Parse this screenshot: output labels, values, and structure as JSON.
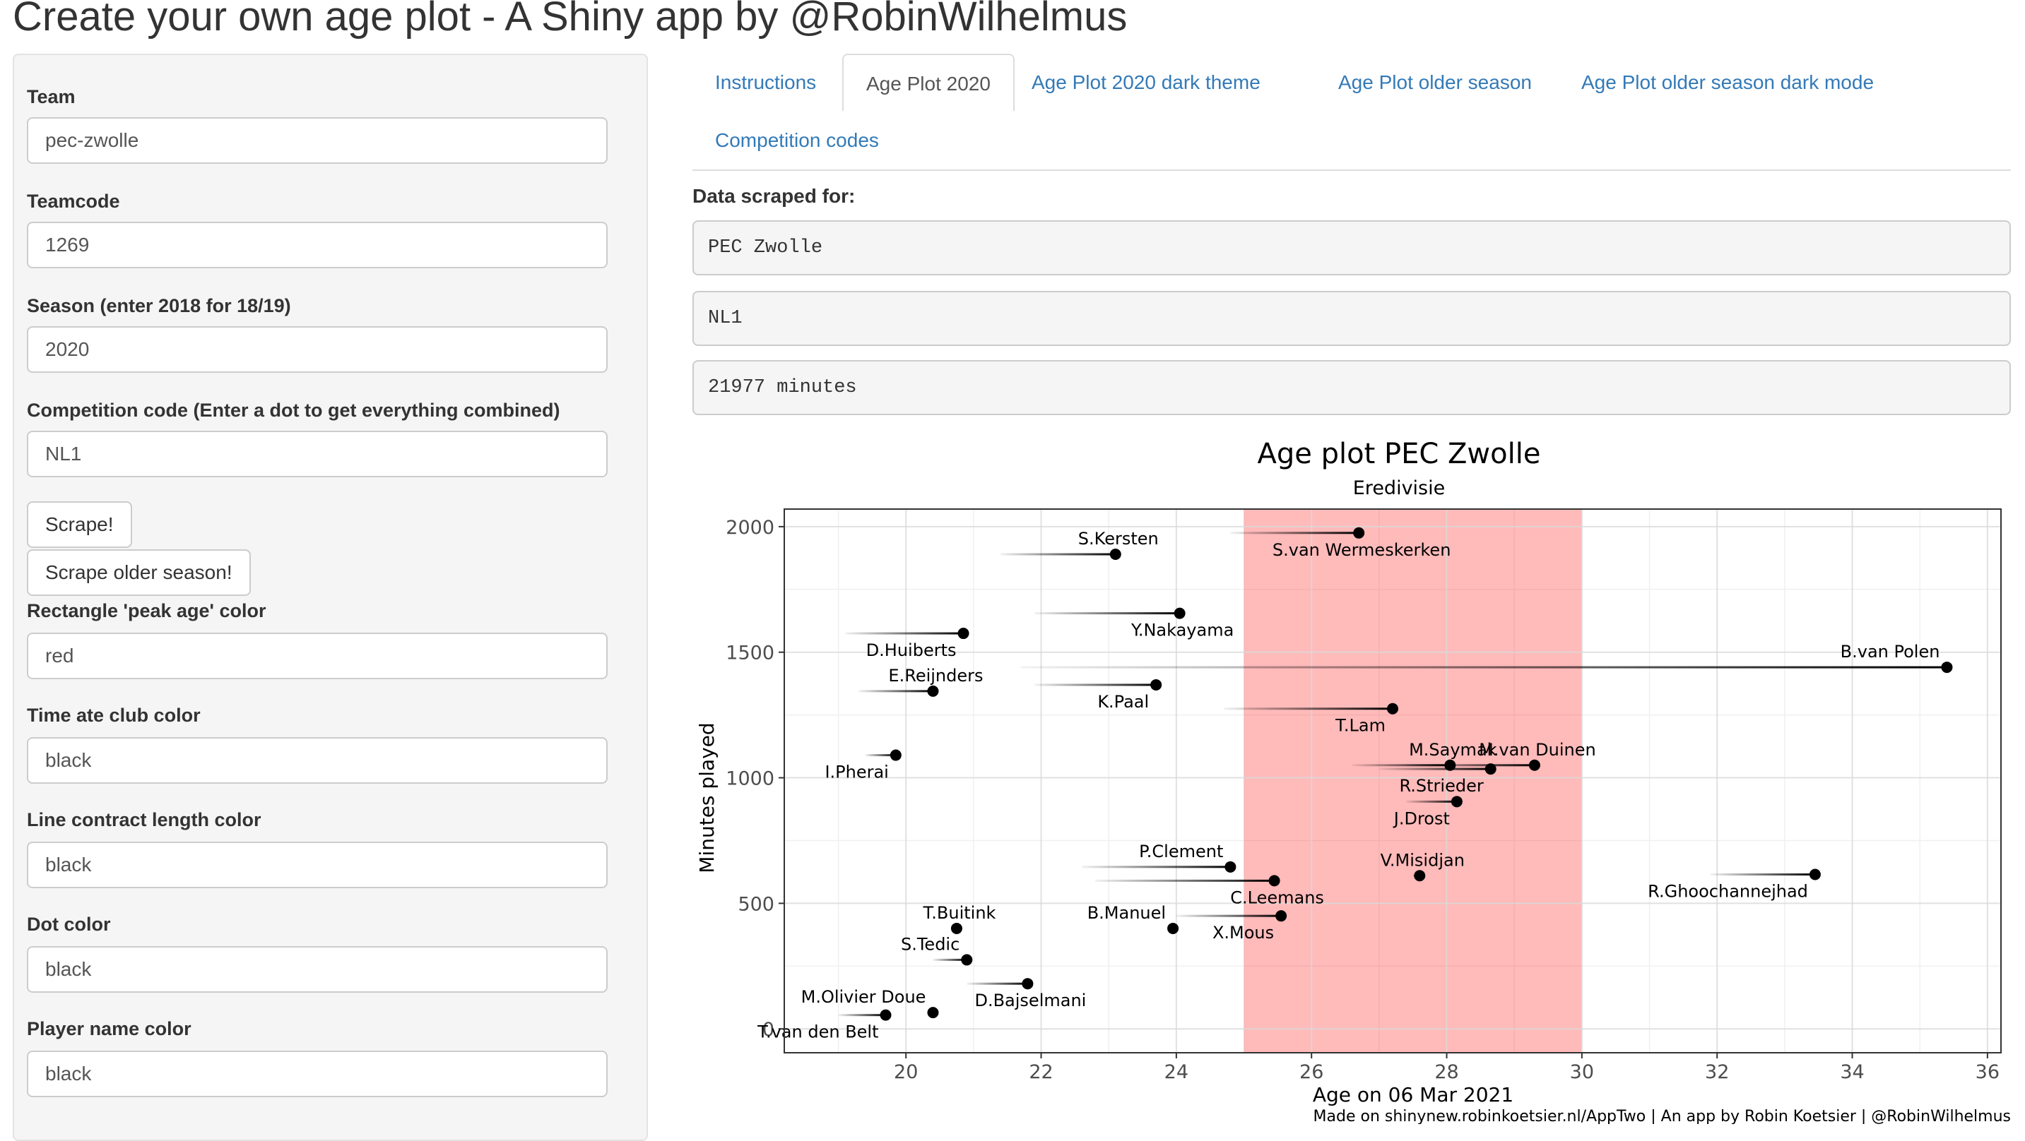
{
  "app": {
    "title": "Create your own age plot - A Shiny app by @RobinWilhelmus"
  },
  "sidebar": {
    "team": {
      "label": "Team",
      "value": "pec-zwolle"
    },
    "teamcode": {
      "label": "Teamcode",
      "value": "1269"
    },
    "season": {
      "label": "Season (enter 2018 for 18/19)",
      "value": "2020"
    },
    "competition": {
      "label": "Competition code (Enter a dot to get everything combined)",
      "value": "NL1"
    },
    "scrape_button": "Scrape!",
    "scrape_older_button": "Scrape older season!",
    "rect_color": {
      "label": "Rectangle 'peak age' color",
      "value": "red"
    },
    "time_club_color": {
      "label": "Time ate club color",
      "value": "black"
    },
    "line_contract_color": {
      "label": "Line contract length color",
      "value": "black"
    },
    "dot_color": {
      "label": "Dot color",
      "value": "black"
    },
    "player_name_color": {
      "label": "Player name color",
      "value": "black"
    }
  },
  "tabs": [
    {
      "label": "Instructions",
      "active": false
    },
    {
      "label": "Age Plot 2020",
      "active": true
    },
    {
      "label": "Age Plot 2020 dark theme",
      "active": false
    },
    {
      "label": "Age Plot older season",
      "active": false
    },
    {
      "label": "Age Plot older season dark mode",
      "active": false
    },
    {
      "label": "Competition codes",
      "active": false
    }
  ],
  "main": {
    "scraped_label": "Data scraped for:",
    "scraped_team": "PEC Zwolle",
    "scraped_competition": "NL1",
    "scraped_minutes": "21977 minutes"
  },
  "chart_data": {
    "type": "scatter",
    "title": "Age plot PEC Zwolle",
    "subtitle": "Eredivisie",
    "xlabel": "Age on 06 Mar 2021",
    "ylabel": "Minutes played",
    "caption": "Made on shinynew.robinkoetsier.nl/AppTwo | An app by Robin Koetsier | @RobinWilhelmus",
    "xlim": [
      18.2,
      36.2
    ],
    "ylim": [
      -95,
      2070
    ],
    "x_ticks": [
      20,
      22,
      24,
      26,
      28,
      30,
      32,
      34,
      36
    ],
    "y_ticks": [
      0,
      500,
      1000,
      1500,
      2000
    ],
    "peak_age_band": [
      25,
      30
    ],
    "peak_color": "#ff0000",
    "dot_color": "#000000",
    "grid": true,
    "points": [
      {
        "name": "S.van Wermeskerken",
        "x": 26.7,
        "y": 1975,
        "line_start": 24.8
      },
      {
        "name": "S.Kersten",
        "x": 23.1,
        "y": 1890,
        "line_start": 21.4
      },
      {
        "name": "Y.Nakayama",
        "x": 24.05,
        "y": 1655,
        "line_start": 21.9
      },
      {
        "name": "D.Huiberts",
        "x": 20.85,
        "y": 1575,
        "line_start": 19.1
      },
      {
        "name": "B.van Polen",
        "x": 35.4,
        "y": 1440,
        "line_start": 21.7
      },
      {
        "name": "K.Paal",
        "x": 23.7,
        "y": 1370,
        "line_start": 21.9
      },
      {
        "name": "E.Reijnders",
        "x": 20.4,
        "y": 1345,
        "line_start": 19.3
      },
      {
        "name": "T.Lam",
        "x": 27.2,
        "y": 1275,
        "line_start": 24.7
      },
      {
        "name": "I.Pherai",
        "x": 19.85,
        "y": 1090,
        "line_start": 19.4
      },
      {
        "name": "M.Saymak",
        "x": 28.05,
        "y": 1050,
        "line_start": 26.6
      },
      {
        "name": "M.van Duinen",
        "x": 29.3,
        "y": 1050,
        "line_start": 27.4
      },
      {
        "name": "R.Strieder",
        "x": 28.65,
        "y": 1035,
        "line_start": 27.0
      },
      {
        "name": "J.Drost",
        "x": 28.15,
        "y": 905,
        "line_start": 27.4
      },
      {
        "name": "P.Clement",
        "x": 24.8,
        "y": 645,
        "line_start": 22.6
      },
      {
        "name": "V.Misidjan",
        "x": 27.6,
        "y": 610,
        "line_start": 27.5
      },
      {
        "name": "C.Leemans",
        "x": 25.45,
        "y": 590,
        "line_start": 22.8
      },
      {
        "name": "R.Ghoochannejhad",
        "x": 33.45,
        "y": 615,
        "line_start": 31.9
      },
      {
        "name": "X.Mous",
        "x": 25.55,
        "y": 450,
        "line_start": 24.0
      },
      {
        "name": "B.Manuel",
        "x": 23.95,
        "y": 400,
        "line_start": 23.9
      },
      {
        "name": "T.Buitink",
        "x": 20.75,
        "y": 400,
        "line_start": 20.7
      },
      {
        "name": "S.Tedic",
        "x": 20.9,
        "y": 275,
        "line_start": 20.4
      },
      {
        "name": "D.Bajselmani",
        "x": 21.8,
        "y": 180,
        "line_start": 20.9
      },
      {
        "name": "M.Olivier Doue",
        "x": 20.4,
        "y": 65,
        "line_start": 20.4
      },
      {
        "name": "T.van den Belt",
        "x": 19.7,
        "y": 55,
        "line_start": 19.0
      }
    ]
  }
}
